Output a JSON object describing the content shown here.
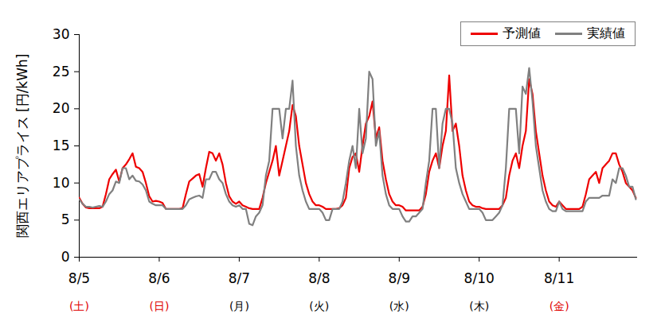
{
  "chart_data": {
    "type": "line",
    "y_label": "関西エリアプライス [円/kWh]",
    "x": [
      0,
      1,
      2,
      3,
      4,
      5,
      6,
      7,
      8,
      9,
      10,
      11,
      12,
      13,
      14,
      15,
      16,
      17,
      18,
      19,
      20,
      21,
      22,
      23,
      24,
      25,
      26,
      27,
      28,
      29,
      30,
      31,
      32,
      33,
      34,
      35,
      36,
      37,
      38,
      39,
      40,
      41,
      42,
      43,
      44,
      45,
      46,
      47,
      48,
      49,
      50,
      51,
      52,
      53,
      54,
      55,
      56,
      57,
      58,
      59,
      60,
      61,
      62,
      63,
      64,
      65,
      66,
      67,
      68,
      69,
      70,
      71,
      72,
      73,
      74,
      75,
      76,
      77,
      78,
      79,
      80,
      81,
      82,
      83,
      84,
      85,
      86,
      87,
      88,
      89,
      90,
      91,
      92,
      93,
      94,
      95,
      96,
      97,
      98,
      99,
      100,
      101,
      102,
      103,
      104,
      105,
      106,
      107,
      108,
      109,
      110,
      111,
      112,
      113,
      114,
      115,
      116,
      117,
      118,
      119,
      120,
      121,
      122,
      123,
      124,
      125,
      126,
      127,
      128,
      129,
      130,
      131,
      132,
      133,
      134,
      135,
      136,
      137,
      138,
      139,
      140,
      141,
      142,
      143,
      144,
      145,
      146,
      147,
      148,
      149,
      150,
      151,
      152,
      153,
      154,
      155,
      156,
      157,
      158,
      159,
      160,
      161,
      162,
      163,
      164,
      165,
      166,
      167
    ],
    "xlim": [
      0,
      167.5
    ],
    "xticks": [
      {
        "value": 0,
        "label": "8/5"
      },
      {
        "value": 24,
        "label": "8/6"
      },
      {
        "value": 48,
        "label": "8/7"
      },
      {
        "value": 72,
        "label": "8/8"
      },
      {
        "value": 96,
        "label": "8/9"
      },
      {
        "value": 120,
        "label": "8/10"
      },
      {
        "value": 144,
        "label": "8/11"
      }
    ],
    "x_sublabels": [
      {
        "label": "(土)",
        "color": "#e00000"
      },
      {
        "label": "(日)",
        "color": "#e00000"
      },
      {
        "label": "(月)",
        "color": "#000000"
      },
      {
        "label": "(火)",
        "color": "#000000"
      },
      {
        "label": "(水)",
        "color": "#000000"
      },
      {
        "label": "(木)",
        "color": "#000000"
      },
      {
        "label": "(金)",
        "color": "#e00000"
      }
    ],
    "ylim": [
      0,
      30
    ],
    "yticks": [
      0,
      5,
      10,
      15,
      20,
      25,
      30
    ],
    "grid": false,
    "legend": "top-right",
    "series": [
      {
        "name": "予測値",
        "color": "#ee0000",
        "values": [
          8.0,
          7.2,
          6.7,
          6.6,
          6.6,
          6.6,
          6.6,
          6.8,
          8.5,
          10.5,
          11.2,
          11.8,
          10.2,
          12.0,
          12.5,
          13.2,
          14.0,
          12.2,
          12.0,
          11.5,
          10.0,
          8.2,
          7.5,
          7.6,
          7.5,
          7.3,
          6.5,
          6.5,
          6.5,
          6.5,
          6.5,
          6.6,
          8.5,
          10.2,
          10.6,
          11.0,
          11.2,
          9.5,
          12.0,
          14.2,
          14.0,
          13.0,
          14.0,
          12.5,
          10.0,
          8.2,
          7.5,
          7.2,
          7.5,
          7.0,
          6.8,
          6.6,
          6.5,
          6.5,
          6.5,
          8.0,
          10.0,
          11.5,
          13.0,
          15.0,
          11.0,
          13.0,
          15.0,
          17.0,
          20.5,
          19.0,
          15.0,
          12.5,
          10.0,
          8.5,
          7.5,
          7.0,
          7.0,
          6.8,
          6.5,
          6.5,
          6.5,
          6.5,
          6.6,
          7.0,
          8.0,
          12.0,
          13.5,
          14.0,
          11.5,
          15.0,
          18.0,
          19.0,
          21.0,
          16.0,
          17.5,
          13.0,
          10.5,
          8.5,
          7.5,
          7.0,
          7.0,
          6.8,
          6.3,
          6.3,
          6.3,
          6.3,
          6.3,
          6.8,
          8.5,
          11.5,
          13.0,
          14.0,
          12.0,
          15.0,
          17.0,
          24.5,
          17.0,
          18.0,
          15.0,
          11.0,
          9.0,
          7.5,
          7.0,
          6.8,
          6.8,
          6.6,
          6.5,
          6.5,
          6.5,
          6.5,
          6.5,
          7.0,
          8.0,
          11.0,
          13.0,
          14.0,
          12.0,
          15.0,
          17.0,
          24.0,
          22.0,
          17.0,
          14.0,
          11.0,
          9.0,
          7.5,
          7.0,
          6.8,
          7.5,
          7.0,
          6.5,
          6.5,
          6.5,
          6.5,
          6.5,
          6.8,
          8.5,
          10.5,
          11.0,
          11.5,
          10.0,
          12.0,
          12.5,
          13.0,
          14.0,
          14.0,
          12.5,
          11.5,
          10.0,
          9.5,
          9.0,
          8.0
        ]
      },
      {
        "name": "実績値",
        "color": "#808080",
        "values": [
          7.8,
          7.2,
          6.8,
          6.8,
          6.7,
          6.8,
          6.9,
          6.8,
          7.5,
          8.5,
          9.0,
          10.2,
          10.0,
          12.0,
          12.0,
          10.5,
          11.0,
          10.3,
          10.2,
          9.8,
          9.0,
          7.5,
          7.2,
          7.0,
          7.0,
          7.0,
          6.5,
          6.5,
          6.5,
          6.5,
          6.5,
          6.5,
          7.0,
          7.8,
          8.0,
          8.2,
          8.3,
          8.0,
          10.5,
          10.5,
          11.5,
          11.5,
          10.5,
          10.0,
          8.5,
          7.5,
          7.0,
          6.8,
          7.0,
          6.5,
          6.5,
          4.5,
          4.3,
          5.5,
          6.0,
          7.0,
          11.0,
          13.0,
          20.0,
          20.0,
          20.0,
          16.0,
          20.0,
          20.0,
          23.8,
          15.0,
          11.0,
          9.0,
          7.5,
          6.5,
          6.5,
          6.5,
          6.5,
          6.0,
          5.0,
          5.0,
          6.5,
          6.5,
          6.5,
          7.5,
          10.0,
          13.0,
          15.0,
          12.0,
          20.0,
          14.0,
          16.0,
          25.0,
          24.0,
          15.0,
          17.0,
          11.0,
          8.5,
          7.0,
          6.5,
          6.5,
          6.5,
          5.5,
          4.8,
          4.8,
          5.5,
          5.5,
          6.0,
          6.5,
          10.0,
          13.0,
          20.0,
          20.0,
          12.0,
          18.0,
          20.0,
          20.0,
          18.0,
          12.0,
          10.0,
          8.5,
          7.5,
          6.5,
          6.5,
          6.5,
          6.5,
          6.0,
          5.0,
          5.0,
          5.0,
          5.5,
          6.0,
          7.0,
          12.0,
          20.0,
          20.0,
          20.0,
          14.0,
          23.0,
          22.0,
          25.5,
          21.0,
          15.0,
          12.0,
          9.0,
          7.5,
          6.5,
          6.2,
          6.2,
          7.5,
          6.5,
          6.2,
          6.2,
          6.2,
          6.2,
          6.2,
          6.2,
          7.5,
          8.0,
          8.0,
          8.0,
          8.0,
          8.3,
          8.3,
          8.3,
          10.5,
          10.0,
          12.0,
          12.0,
          11.0,
          9.5,
          9.5,
          7.8
        ]
      }
    ]
  }
}
